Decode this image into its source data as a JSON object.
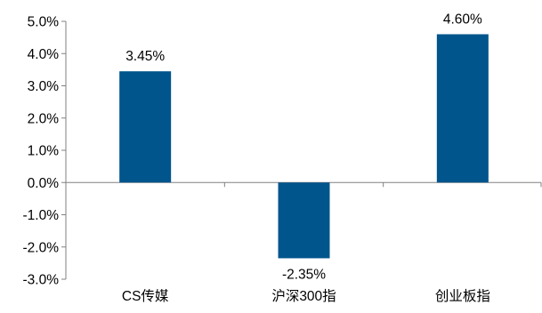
{
  "chart_data": {
    "type": "bar",
    "title": "",
    "xlabel": "",
    "ylabel": "",
    "categories": [
      "CS传媒",
      "沪深300指",
      "创业板指"
    ],
    "values": [
      3.45,
      -2.35,
      4.6
    ],
    "data_labels": [
      "3.45%",
      "-2.35%",
      "4.60%"
    ],
    "ylim": [
      -3.0,
      5.0
    ],
    "yticks": [
      5.0,
      4.0,
      3.0,
      2.0,
      1.0,
      0.0,
      -1.0,
      -2.0,
      -3.0
    ],
    "ytick_labels": [
      "5.0%",
      "4.0%",
      "3.0%",
      "2.0%",
      "1.0%",
      "0.0%",
      "-1.0%",
      "-2.0%",
      "-3.0%"
    ],
    "grid": false,
    "legend": "none",
    "bar_color": "#00558C",
    "axis_color": "#808080",
    "text_color": "#000000"
  }
}
